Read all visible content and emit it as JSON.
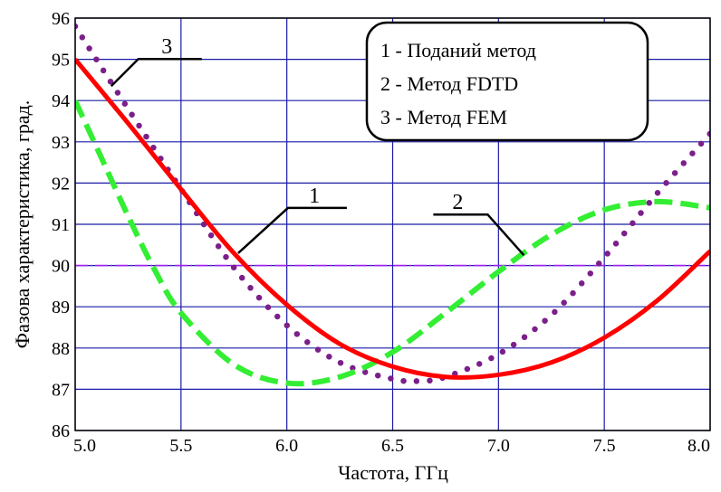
{
  "chart_data": {
    "type": "line",
    "xlabel": "Частота, ГГц",
    "ylabel": "Фазова характеристика, град.",
    "xlim": [
      5.0,
      8.0
    ],
    "ylim": [
      86,
      96
    ],
    "x_ticks": [
      "5.0",
      "5.5",
      "6.0",
      "6.5",
      "7.0",
      "7.5",
      "8.0"
    ],
    "y_ticks": [
      "86",
      "87",
      "88",
      "89",
      "90",
      "91",
      "92",
      "93",
      "94",
      "95",
      "96"
    ],
    "grid": true,
    "legend_position": "top-right",
    "legend": [
      "1 - Поданий метод",
      "2 - Метод FDTD",
      "3 - Метод FEM"
    ],
    "reference_line": {
      "y": 90,
      "color": "#a020f0"
    },
    "series": [
      {
        "label": "1",
        "style": "solid",
        "color": "#ff0000",
        "x": [
          5.0,
          5.25,
          5.5,
          5.75,
          6.0,
          6.25,
          6.5,
          6.75,
          7.0,
          7.25,
          7.5,
          7.75,
          8.0
        ],
        "y": [
          95.0,
          93.45,
          91.85,
          90.3,
          89.05,
          88.1,
          87.55,
          87.3,
          87.35,
          87.65,
          88.25,
          89.15,
          90.35
        ]
      },
      {
        "label": "2",
        "style": "dashed",
        "color": "#33ee33",
        "x": [
          5.0,
          5.125,
          5.25,
          5.375,
          5.5,
          5.75,
          6.0,
          6.25,
          6.5,
          6.75,
          7.0,
          7.25,
          7.5,
          7.75,
          8.0
        ],
        "y": [
          94.0,
          92.6,
          91.2,
          89.9,
          88.85,
          87.6,
          87.15,
          87.3,
          87.9,
          88.85,
          89.85,
          90.75,
          91.35,
          91.55,
          91.4
        ]
      },
      {
        "label": "3",
        "style": "dotted",
        "color": "#7b1f8a",
        "x": [
          5.0,
          5.25,
          5.5,
          5.75,
          6.0,
          6.25,
          6.5,
          6.625,
          6.75,
          7.0,
          7.25,
          7.5,
          7.75,
          8.0
        ],
        "y": [
          95.8,
          93.8,
          91.85,
          89.95,
          88.55,
          87.65,
          87.25,
          87.2,
          87.3,
          87.85,
          88.8,
          90.2,
          91.75,
          93.2
        ]
      }
    ],
    "callouts": [
      {
        "text": "1",
        "target": [
          5.77,
          90.3
        ]
      },
      {
        "text": "2",
        "target": [
          7.12,
          90.25
        ]
      },
      {
        "text": "3",
        "target": [
          5.17,
          94.35
        ]
      }
    ]
  }
}
